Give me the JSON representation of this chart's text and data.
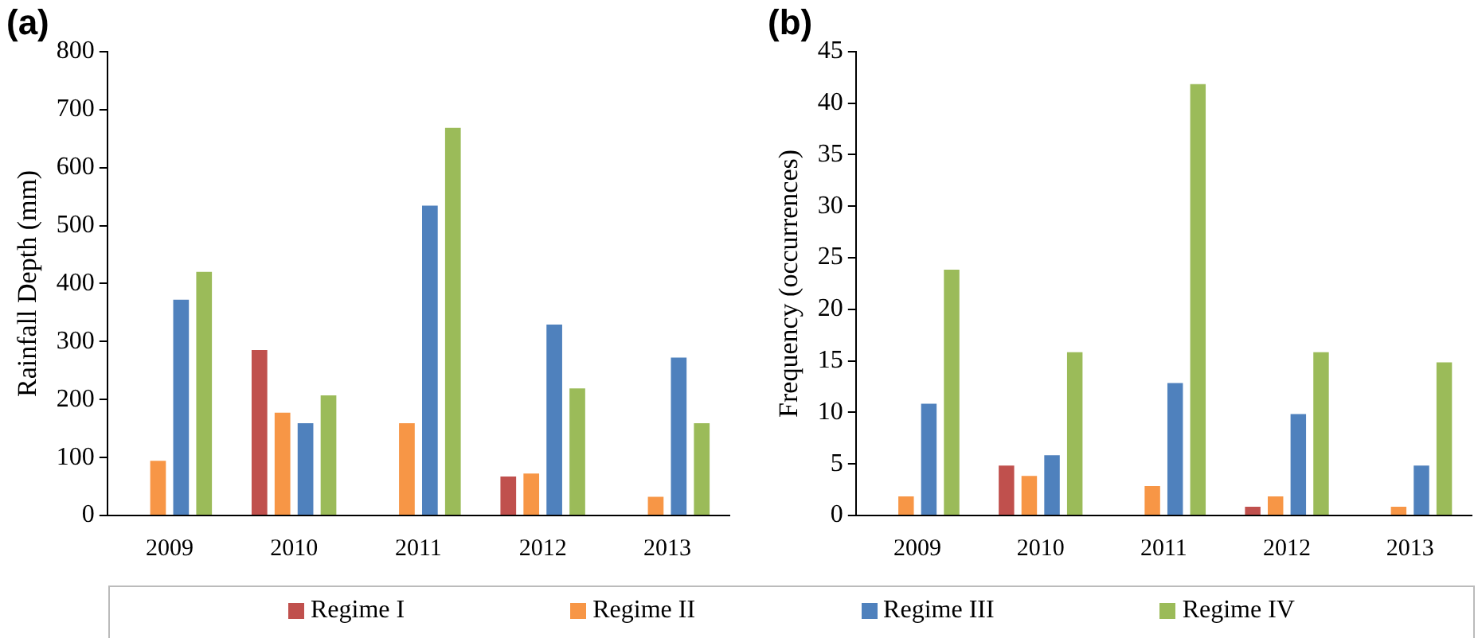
{
  "chart_data": [
    {
      "type": "bar",
      "title": "(a)",
      "ylabel": "Rainfall Depth (mm)",
      "categories": [
        "2009",
        "2010",
        "2011",
        "2012",
        "2013"
      ],
      "ylim": [
        0,
        800
      ],
      "yticks": [
        0,
        100,
        200,
        300,
        400,
        500,
        600,
        700,
        800
      ],
      "grid": false,
      "legend": "bottom",
      "series": [
        {
          "name": "Regime I",
          "color": "#c0504d",
          "values": [
            0,
            288,
            0,
            70,
            0
          ]
        },
        {
          "name": "Regime II",
          "color": "#f79646",
          "values": [
            97,
            180,
            162,
            75,
            35
          ]
        },
        {
          "name": "Regime III",
          "color": "#4f81bd",
          "values": [
            375,
            162,
            537,
            332,
            275
          ]
        },
        {
          "name": "Regime IV",
          "color": "#9bbb59",
          "values": [
            423,
            210,
            671,
            222,
            162
          ]
        }
      ]
    },
    {
      "type": "bar",
      "title": "(b)",
      "ylabel": "Frequency (occurrences)",
      "categories": [
        "2009",
        "2010",
        "2011",
        "2012",
        "2013"
      ],
      "ylim": [
        0,
        45
      ],
      "yticks": [
        0,
        5,
        10,
        15,
        20,
        25,
        30,
        35,
        40,
        45
      ],
      "grid": false,
      "legend": "bottom",
      "series": [
        {
          "name": "Regime I",
          "color": "#c0504d",
          "values": [
            0,
            5,
            0,
            1,
            0
          ]
        },
        {
          "name": "Regime II",
          "color": "#f79646",
          "values": [
            2,
            4,
            3,
            2,
            1
          ]
        },
        {
          "name": "Regime III",
          "color": "#4f81bd",
          "values": [
            11,
            6,
            13,
            10,
            5
          ]
        },
        {
          "name": "Regime IV",
          "color": "#9bbb59",
          "values": [
            24,
            16,
            42,
            16,
            15
          ]
        }
      ]
    }
  ]
}
